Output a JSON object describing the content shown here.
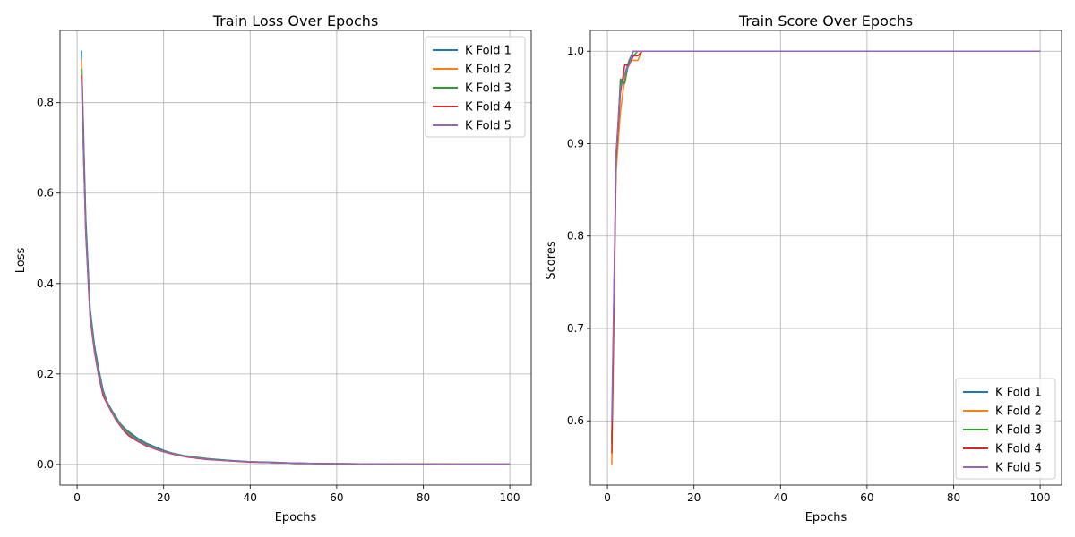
{
  "chart_data": [
    {
      "type": "line",
      "title": "Train Loss Over Epochs",
      "xlabel": "Epochs",
      "ylabel": "Loss",
      "xlim": [
        -3.95,
        104.95
      ],
      "ylim": [
        -0.0457,
        0.9597
      ],
      "xticks": [
        0,
        20,
        40,
        60,
        80,
        100
      ],
      "yticks": [
        0.0,
        0.2,
        0.4,
        0.6,
        0.8
      ],
      "xtick_labels": [
        "0",
        "20",
        "40",
        "60",
        "80",
        "100"
      ],
      "ytick_labels": [
        "0.0",
        "0.2",
        "0.4",
        "0.6",
        "0.8"
      ],
      "grid": true,
      "legend_position": "upper right",
      "x": [
        1,
        2,
        3,
        4,
        5,
        6,
        7,
        8,
        9,
        10,
        11,
        12,
        14,
        16,
        18,
        20,
        22,
        25,
        30,
        35,
        40,
        45,
        50,
        55,
        60,
        70,
        80,
        90,
        100
      ],
      "series": [
        {
          "name": "K Fold 1",
          "color": "#1f77b4",
          "values": [
            0.915,
            0.545,
            0.345,
            0.265,
            0.21,
            0.165,
            0.135,
            0.12,
            0.105,
            0.09,
            0.08,
            0.072,
            0.058,
            0.047,
            0.039,
            0.031,
            0.025,
            0.019,
            0.013,
            0.009,
            0.006,
            0.005,
            0.003,
            0.002,
            0.0015,
            0.001,
            0.0008,
            0.0006,
            0.0005
          ]
        },
        {
          "name": "K Fold 2",
          "color": "#ff7f0e",
          "values": [
            0.895,
            0.52,
            0.33,
            0.255,
            0.2,
            0.157,
            0.135,
            0.117,
            0.1,
            0.087,
            0.076,
            0.068,
            0.055,
            0.044,
            0.036,
            0.029,
            0.024,
            0.018,
            0.012,
            0.008,
            0.006,
            0.004,
            0.003,
            0.002,
            0.0015,
            0.001,
            0.0008,
            0.0006,
            0.0005
          ]
        },
        {
          "name": "K Fold 3",
          "color": "#2ca02c",
          "values": [
            0.875,
            0.53,
            0.34,
            0.26,
            0.205,
            0.162,
            0.138,
            0.12,
            0.103,
            0.09,
            0.079,
            0.07,
            0.056,
            0.045,
            0.037,
            0.03,
            0.025,
            0.019,
            0.013,
            0.009,
            0.006,
            0.004,
            0.003,
            0.002,
            0.0015,
            0.001,
            0.0008,
            0.0006,
            0.0005
          ]
        },
        {
          "name": "K Fold 4",
          "color": "#d62728",
          "values": [
            0.86,
            0.51,
            0.325,
            0.25,
            0.195,
            0.152,
            0.133,
            0.115,
            0.098,
            0.085,
            0.072,
            0.063,
            0.051,
            0.041,
            0.034,
            0.028,
            0.023,
            0.017,
            0.011,
            0.008,
            0.005,
            0.004,
            0.003,
            0.002,
            0.0015,
            0.001,
            0.0008,
            0.0006,
            0.0005
          ]
        },
        {
          "name": "K Fold 5",
          "color": "#9467bd",
          "values": [
            0.85,
            0.515,
            0.33,
            0.255,
            0.2,
            0.158,
            0.136,
            0.117,
            0.1,
            0.087,
            0.075,
            0.066,
            0.053,
            0.043,
            0.035,
            0.029,
            0.024,
            0.018,
            0.012,
            0.008,
            0.006,
            0.004,
            0.003,
            0.002,
            0.0015,
            0.001,
            0.0008,
            0.0006,
            0.0005
          ]
        }
      ]
    },
    {
      "type": "line",
      "title": "Train Score Over Epochs",
      "xlabel": "Epochs",
      "ylabel": "Scores",
      "xlim": [
        -3.95,
        104.95
      ],
      "ylim": [
        0.5305,
        1.0225
      ],
      "xticks": [
        0,
        20,
        40,
        60,
        80,
        100
      ],
      "yticks": [
        0.6,
        0.7,
        0.8,
        0.9,
        1.0
      ],
      "xtick_labels": [
        "0",
        "20",
        "40",
        "60",
        "80",
        "100"
      ],
      "ytick_labels": [
        "0.6",
        "0.7",
        "0.8",
        "0.9",
        "1.0"
      ],
      "grid": true,
      "legend_position": "lower right",
      "x": [
        1,
        2,
        3,
        4,
        5,
        6,
        7,
        8,
        9,
        10,
        15,
        20,
        40,
        60,
        80,
        100
      ],
      "series": [
        {
          "name": "K Fold 1",
          "color": "#1f77b4",
          "values": [
            0.58,
            0.885,
            0.965,
            0.975,
            0.99,
            1.0,
            1.0,
            1.0,
            1.0,
            1.0,
            1.0,
            1.0,
            1.0,
            1.0,
            1.0,
            1.0
          ]
        },
        {
          "name": "K Fold 2",
          "color": "#ff7f0e",
          "values": [
            0.552,
            0.87,
            0.935,
            0.97,
            0.99,
            0.99,
            0.99,
            1.0,
            1.0,
            1.0,
            1.0,
            1.0,
            1.0,
            1.0,
            1.0,
            1.0
          ]
        },
        {
          "name": "K Fold 3",
          "color": "#2ca02c",
          "values": [
            0.575,
            0.88,
            0.97,
            0.965,
            0.99,
            0.995,
            1.0,
            1.0,
            1.0,
            1.0,
            1.0,
            1.0,
            1.0,
            1.0,
            1.0,
            1.0
          ]
        },
        {
          "name": "K Fold 4",
          "color": "#d62728",
          "values": [
            0.565,
            0.885,
            0.955,
            0.985,
            0.985,
            0.995,
            0.995,
            1.0,
            1.0,
            1.0,
            1.0,
            1.0,
            1.0,
            1.0,
            1.0,
            1.0
          ]
        },
        {
          "name": "K Fold 5",
          "color": "#9467bd",
          "values": [
            0.6,
            0.89,
            0.96,
            0.975,
            0.985,
            1.0,
            1.0,
            1.0,
            1.0,
            1.0,
            1.0,
            1.0,
            1.0,
            1.0,
            1.0,
            1.0
          ]
        }
      ]
    }
  ]
}
